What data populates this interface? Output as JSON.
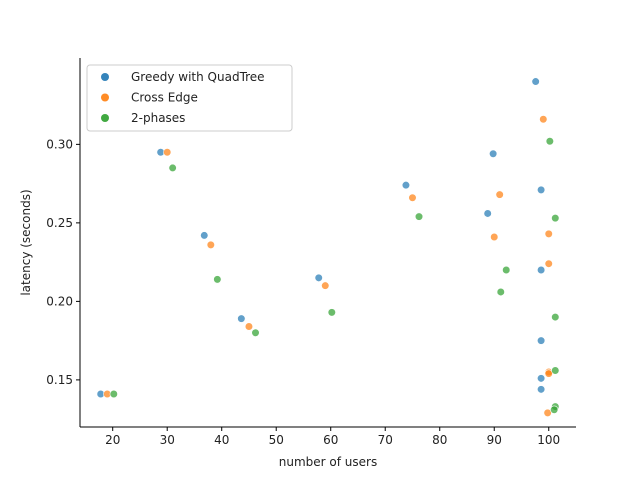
{
  "chart_data": {
    "type": "scatter",
    "xlabel": "number of users",
    "ylabel": "latency (seconds)",
    "xlim": [
      14,
      105
    ],
    "ylim": [
      0.12,
      0.355
    ],
    "x_ticks": [
      20,
      30,
      40,
      50,
      60,
      70,
      80,
      90,
      100
    ],
    "y_ticks": [
      0.15,
      0.2,
      0.25,
      0.3
    ],
    "grid": false,
    "legend_position": "top-left",
    "series": [
      {
        "name": "Greedy with QuadTree",
        "color": "#1f77b4",
        "points": [
          [
            17.8,
            0.141
          ],
          [
            28.8,
            0.295
          ],
          [
            36.8,
            0.242
          ],
          [
            43.6,
            0.189
          ],
          [
            57.8,
            0.215
          ],
          [
            73.8,
            0.274
          ],
          [
            88.8,
            0.256
          ],
          [
            89.8,
            0.294
          ],
          [
            97.6,
            0.34
          ],
          [
            98.6,
            0.271
          ],
          [
            98.6,
            0.22
          ],
          [
            98.6,
            0.175
          ],
          [
            98.6,
            0.151
          ],
          [
            98.6,
            0.144
          ]
        ]
      },
      {
        "name": "Cross Edge",
        "color": "#ff7f0e",
        "points": [
          [
            19.0,
            0.141
          ],
          [
            30.0,
            0.295
          ],
          [
            38.0,
            0.236
          ],
          [
            45.0,
            0.184
          ],
          [
            59.0,
            0.21
          ],
          [
            75.0,
            0.266
          ],
          [
            90.0,
            0.241
          ],
          [
            91.0,
            0.268
          ],
          [
            99.0,
            0.316
          ],
          [
            100.0,
            0.243
          ],
          [
            100.0,
            0.224
          ],
          [
            100.0,
            0.155
          ],
          [
            100.0,
            0.154
          ],
          [
            99.8,
            0.129
          ]
        ]
      },
      {
        "name": "2-phases",
        "color": "#2ca02c",
        "points": [
          [
            20.2,
            0.141
          ],
          [
            31.0,
            0.285
          ],
          [
            39.2,
            0.214
          ],
          [
            46.2,
            0.18
          ],
          [
            60.2,
            0.193
          ],
          [
            76.2,
            0.254
          ],
          [
            91.2,
            0.206
          ],
          [
            92.2,
            0.22
          ],
          [
            100.2,
            0.302
          ],
          [
            101.2,
            0.253
          ],
          [
            101.2,
            0.19
          ],
          [
            101.2,
            0.156
          ],
          [
            101.2,
            0.133
          ],
          [
            101.0,
            0.131
          ]
        ]
      }
    ]
  }
}
